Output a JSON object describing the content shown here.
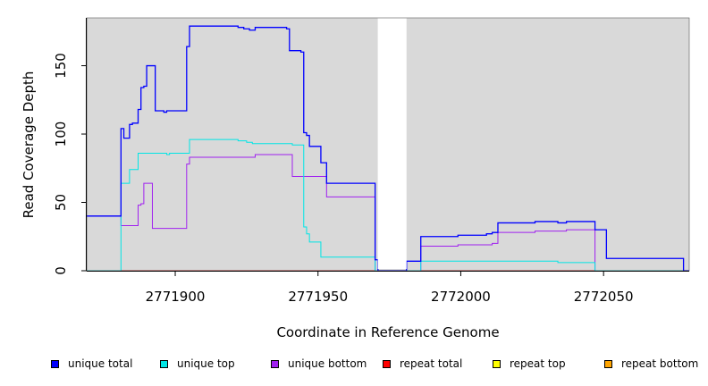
{
  "chart_data": {
    "type": "line",
    "title": "",
    "xlabel": "Coordinate in Reference Genome",
    "ylabel": "Read Coverage Depth",
    "xlim": [
      2771869,
      2772080
    ],
    "ylim": [
      0,
      185
    ],
    "x_ticks": [
      2771900,
      2771950,
      2772000,
      2772050
    ],
    "x_tick_labels": [
      "2771900",
      "2771950",
      "2772000",
      "2772050"
    ],
    "y_ticks": [
      0,
      50,
      100,
      150
    ],
    "y_tick_labels": [
      "0",
      "50",
      "100",
      "150"
    ],
    "grid": false,
    "legend_position": "bottom",
    "gap": [
      2771970,
      2771981
    ],
    "series": [
      {
        "name": "unique total",
        "color": "#0000ff",
        "points": [
          [
            2771869,
            40
          ],
          [
            2771881,
            40
          ],
          [
            2771881,
            104
          ],
          [
            2771882,
            104
          ],
          [
            2771882,
            97
          ],
          [
            2771884,
            97
          ],
          [
            2771884,
            107
          ],
          [
            2771885,
            107
          ],
          [
            2771885,
            108
          ],
          [
            2771887,
            108
          ],
          [
            2771887,
            118
          ],
          [
            2771888,
            118
          ],
          [
            2771888,
            134
          ],
          [
            2771889,
            134
          ],
          [
            2771889,
            135
          ],
          [
            2771890,
            135
          ],
          [
            2771890,
            150
          ],
          [
            2771893,
            150
          ],
          [
            2771893,
            117
          ],
          [
            2771896,
            117
          ],
          [
            2771896,
            116
          ],
          [
            2771897,
            116
          ],
          [
            2771897,
            117
          ],
          [
            2771904,
            117
          ],
          [
            2771904,
            164
          ],
          [
            2771905,
            164
          ],
          [
            2771905,
            179
          ],
          [
            2771922,
            179
          ],
          [
            2771922,
            178
          ],
          [
            2771924,
            178
          ],
          [
            2771924,
            177
          ],
          [
            2771926,
            177
          ],
          [
            2771926,
            176
          ],
          [
            2771928,
            176
          ],
          [
            2771928,
            178
          ],
          [
            2771939,
            178
          ],
          [
            2771939,
            177
          ],
          [
            2771940,
            177
          ],
          [
            2771940,
            161
          ],
          [
            2771944,
            161
          ],
          [
            2771944,
            160
          ],
          [
            2771945,
            160
          ],
          [
            2771945,
            101
          ],
          [
            2771946,
            101
          ],
          [
            2771946,
            99
          ],
          [
            2771947,
            99
          ],
          [
            2771947,
            91
          ],
          [
            2771951,
            91
          ],
          [
            2771951,
            79
          ],
          [
            2771953,
            79
          ],
          [
            2771953,
            64
          ],
          [
            2771970,
            64
          ],
          [
            2771970,
            8
          ],
          [
            2771971,
            8
          ],
          [
            2771971,
            0
          ],
          [
            2771981,
            0
          ],
          [
            2771981,
            7
          ],
          [
            2771986,
            7
          ],
          [
            2771986,
            25
          ],
          [
            2771999,
            25
          ],
          [
            2771999,
            26
          ],
          [
            2772009,
            26
          ],
          [
            2772009,
            27
          ],
          [
            2772011,
            27
          ],
          [
            2772011,
            28
          ],
          [
            2772013,
            28
          ],
          [
            2772013,
            35
          ],
          [
            2772026,
            35
          ],
          [
            2772026,
            36
          ],
          [
            2772034,
            36
          ],
          [
            2772034,
            35
          ],
          [
            2772037,
            35
          ],
          [
            2772037,
            36
          ],
          [
            2772047,
            36
          ],
          [
            2772047,
            30
          ],
          [
            2772051,
            30
          ],
          [
            2772051,
            9
          ],
          [
            2772078,
            9
          ],
          [
            2772078,
            0
          ],
          [
            2772080,
            0
          ]
        ]
      },
      {
        "name": "unique top",
        "color": "#00e5e5",
        "points": [
          [
            2771869,
            0
          ],
          [
            2771881,
            0
          ],
          [
            2771881,
            64
          ],
          [
            2771884,
            64
          ],
          [
            2771884,
            74
          ],
          [
            2771887,
            74
          ],
          [
            2771887,
            86
          ],
          [
            2771897,
            86
          ],
          [
            2771897,
            85
          ],
          [
            2771898,
            85
          ],
          [
            2771898,
            86
          ],
          [
            2771905,
            86
          ],
          [
            2771905,
            96
          ],
          [
            2771922,
            96
          ],
          [
            2771922,
            95
          ],
          [
            2771925,
            95
          ],
          [
            2771925,
            94
          ],
          [
            2771927,
            94
          ],
          [
            2771927,
            93
          ],
          [
            2771941,
            93
          ],
          [
            2771941,
            92
          ],
          [
            2771945,
            92
          ],
          [
            2771945,
            32
          ],
          [
            2771946,
            32
          ],
          [
            2771946,
            27
          ],
          [
            2771947,
            27
          ],
          [
            2771947,
            21
          ],
          [
            2771951,
            21
          ],
          [
            2771951,
            10
          ],
          [
            2771970,
            10
          ],
          [
            2771970,
            0
          ],
          [
            2771986,
            0
          ],
          [
            2771986,
            7
          ],
          [
            2772034,
            7
          ],
          [
            2772034,
            6
          ],
          [
            2772047,
            6
          ],
          [
            2772047,
            0
          ],
          [
            2772080,
            0
          ]
        ]
      },
      {
        "name": "unique bottom",
        "color": "#a020f0",
        "points": [
          [
            2771869,
            40
          ],
          [
            2771881,
            40
          ],
          [
            2771881,
            33
          ],
          [
            2771887,
            33
          ],
          [
            2771887,
            48
          ],
          [
            2771888,
            48
          ],
          [
            2771888,
            49
          ],
          [
            2771889,
            49
          ],
          [
            2771889,
            64
          ],
          [
            2771892,
            64
          ],
          [
            2771892,
            31
          ],
          [
            2771904,
            31
          ],
          [
            2771904,
            78
          ],
          [
            2771905,
            78
          ],
          [
            2771905,
            83
          ],
          [
            2771928,
            83
          ],
          [
            2771928,
            85
          ],
          [
            2771941,
            85
          ],
          [
            2771941,
            69
          ],
          [
            2771953,
            69
          ],
          [
            2771953,
            54
          ],
          [
            2771970,
            54
          ],
          [
            2771970,
            0
          ],
          [
            2771986,
            0
          ],
          [
            2771986,
            18
          ],
          [
            2771999,
            18
          ],
          [
            2771999,
            19
          ],
          [
            2772011,
            19
          ],
          [
            2772011,
            20
          ],
          [
            2772013,
            20
          ],
          [
            2772013,
            28
          ],
          [
            2772026,
            28
          ],
          [
            2772026,
            29
          ],
          [
            2772037,
            29
          ],
          [
            2772037,
            30
          ],
          [
            2772047,
            30
          ],
          [
            2772047,
            0
          ],
          [
            2772080,
            0
          ]
        ]
      },
      {
        "name": "repeat total",
        "color": "#ff0000",
        "points": [
          [
            2771869,
            0
          ],
          [
            2772080,
            0
          ]
        ]
      },
      {
        "name": "repeat top",
        "color": "#ffff00",
        "points": [
          [
            2771869,
            0
          ],
          [
            2772080,
            0
          ]
        ]
      },
      {
        "name": "repeat bottom",
        "color": "#ffa500",
        "points": [
          [
            2771869,
            0
          ],
          [
            2772080,
            0
          ]
        ]
      }
    ]
  }
}
